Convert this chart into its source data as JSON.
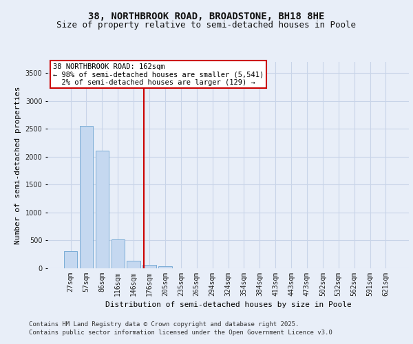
{
  "title_line1": "38, NORTHBROOK ROAD, BROADSTONE, BH18 8HE",
  "title_line2": "Size of property relative to semi-detached houses in Poole",
  "xlabel": "Distribution of semi-detached houses by size in Poole",
  "ylabel": "Number of semi-detached properties",
  "categories": [
    "27sqm",
    "57sqm",
    "86sqm",
    "116sqm",
    "146sqm",
    "176sqm",
    "205sqm",
    "235sqm",
    "265sqm",
    "294sqm",
    "324sqm",
    "354sqm",
    "384sqm",
    "413sqm",
    "443sqm",
    "473sqm",
    "502sqm",
    "532sqm",
    "562sqm",
    "591sqm",
    "621sqm"
  ],
  "values": [
    305,
    2550,
    2110,
    520,
    140,
    65,
    35,
    5,
    0,
    0,
    0,
    0,
    0,
    0,
    0,
    0,
    0,
    0,
    0,
    0,
    0
  ],
  "bar_color": "#c5d8f0",
  "bar_edge_color": "#7aacd6",
  "bar_width": 0.85,
  "vline_x": 4.65,
  "vline_color": "#cc0000",
  "annotation_text": "38 NORTHBROOK ROAD: 162sqm\n← 98% of semi-detached houses are smaller (5,541)\n  2% of semi-detached houses are larger (129) →",
  "annotation_box_color": "#ffffff",
  "annotation_box_edge": "#cc0000",
  "ylim": [
    0,
    3700
  ],
  "yticks": [
    0,
    500,
    1000,
    1500,
    2000,
    2500,
    3000,
    3500
  ],
  "grid_color": "#c8d4e8",
  "background_color": "#e8eef8",
  "footnote1": "Contains HM Land Registry data © Crown copyright and database right 2025.",
  "footnote2": "Contains public sector information licensed under the Open Government Licence v3.0",
  "title_fontsize": 10,
  "subtitle_fontsize": 9,
  "axis_label_fontsize": 8,
  "tick_fontsize": 7,
  "annotation_fontsize": 7.5,
  "footnote_fontsize": 6.5
}
